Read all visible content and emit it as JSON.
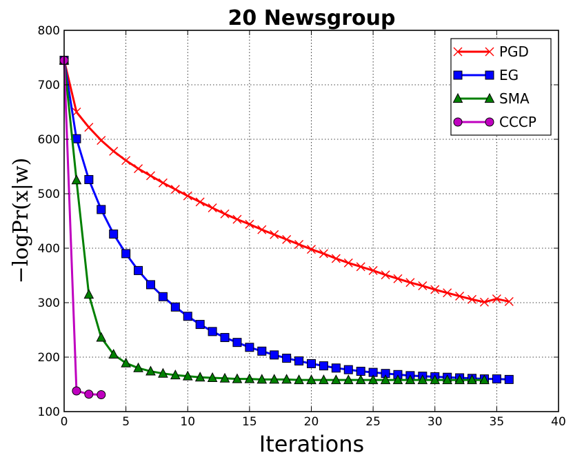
{
  "chart_data": {
    "type": "line",
    "title": "20 Newsgroup",
    "xlabel": "Iterations",
    "ylabel": "−logPr(x|w)",
    "xlim": [
      0,
      40
    ],
    "ylim": [
      100,
      800
    ],
    "xticks": [
      0,
      5,
      10,
      15,
      20,
      25,
      30,
      35,
      40
    ],
    "yticks": [
      100,
      200,
      300,
      400,
      500,
      600,
      700,
      800
    ],
    "grid": true,
    "legend_position": "top-right",
    "series": [
      {
        "name": "PGD",
        "color": "#ff0000",
        "marker": "x",
        "x": [
          0,
          1,
          2,
          3,
          4,
          5,
          6,
          7,
          8,
          9,
          10,
          11,
          12,
          13,
          14,
          15,
          16,
          17,
          18,
          19,
          20,
          21,
          22,
          23,
          24,
          25,
          26,
          27,
          28,
          29,
          30,
          31,
          32,
          33,
          34,
          35,
          36
        ],
        "y": [
          745,
          650,
          622,
          598,
          578,
          561,
          546,
          533,
          520,
          508,
          496,
          485,
          474,
          463,
          453,
          444,
          434,
          425,
          416,
          407,
          398,
          390,
          381,
          373,
          366,
          359,
          351,
          344,
          337,
          331,
          324,
          318,
          312,
          306,
          301,
          307,
          302
        ]
      },
      {
        "name": "EG",
        "color": "#0000ff",
        "marker": "square",
        "x": [
          0,
          1,
          2,
          3,
          4,
          5,
          6,
          7,
          8,
          9,
          10,
          11,
          12,
          13,
          14,
          15,
          16,
          17,
          18,
          19,
          20,
          21,
          22,
          23,
          24,
          25,
          26,
          27,
          28,
          29,
          30,
          31,
          32,
          33,
          34,
          35,
          36
        ],
        "y": [
          745,
          601,
          526,
          471,
          426,
          390,
          359,
          333,
          311,
          292,
          275,
          260,
          247,
          236,
          227,
          218,
          211,
          204,
          198,
          193,
          188,
          184,
          180,
          177,
          174,
          172,
          170,
          168,
          166,
          165,
          164,
          163,
          162,
          161,
          160,
          160,
          159
        ]
      },
      {
        "name": "SMA",
        "color": "#008000",
        "marker": "triangle",
        "x": [
          0,
          1,
          2,
          3,
          4,
          5,
          6,
          7,
          8,
          9,
          10,
          11,
          12,
          13,
          14,
          15,
          16,
          17,
          18,
          19,
          20,
          21,
          22,
          23,
          24,
          25,
          26,
          27,
          28,
          29,
          30,
          31,
          32,
          33,
          34
        ],
        "y": [
          745,
          525,
          315,
          236,
          205,
          189,
          180,
          174,
          170,
          167,
          165,
          163,
          162,
          161,
          160,
          160,
          159,
          159,
          159,
          158,
          158,
          158,
          158,
          158,
          158,
          158,
          158,
          158,
          158,
          158,
          158,
          158,
          158,
          158,
          158
        ]
      },
      {
        "name": "CCCP",
        "color": "#bf00bf",
        "marker": "circle",
        "x": [
          0,
          1,
          2,
          3
        ],
        "y": [
          745,
          138,
          132,
          131
        ]
      }
    ]
  }
}
